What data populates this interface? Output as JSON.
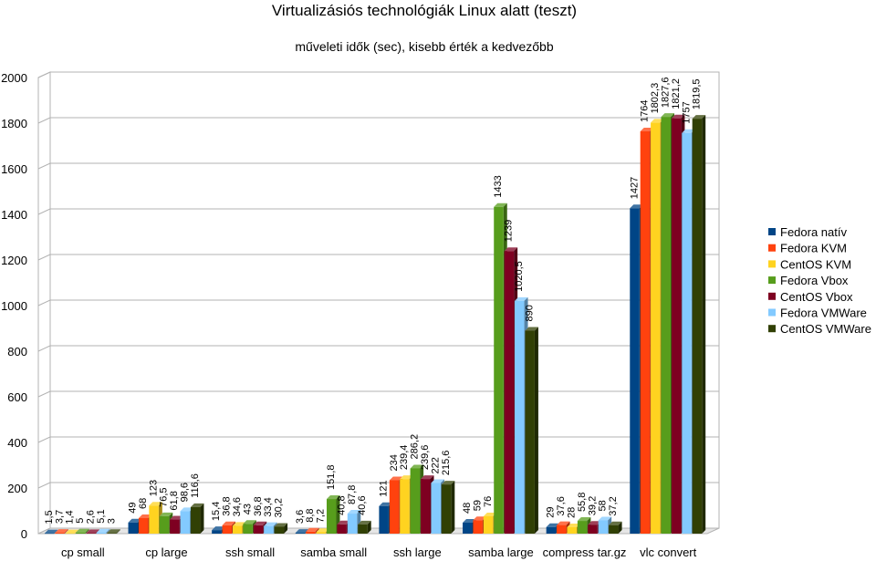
{
  "chart_data": {
    "type": "bar",
    "title": "Virtualizásiós technológiák Linux alatt (teszt)",
    "subtitle": "műveleti idők (sec), kisebb érték a kedvezőbb",
    "xlabel": "",
    "ylabel": "",
    "ylim": [
      0,
      2000
    ],
    "yticks": [
      "0",
      "200",
      "400",
      "600",
      "800",
      "1000",
      "1200",
      "1400",
      "1600",
      "1800",
      "2000"
    ],
    "grid": true,
    "legend_position": "right",
    "categories": [
      "cp small",
      "cp large",
      "ssh small",
      "samba small",
      "ssh large",
      "samba large",
      "compress tar.gz",
      "vlc convert"
    ],
    "series": [
      {
        "name": "Fedora natív",
        "color": "#004586",
        "values": [
          1.5,
          49,
          15.4,
          3.6,
          121,
          48,
          29,
          1427
        ],
        "labels": [
          "1,5",
          "49",
          "15,4",
          "3,6",
          "121",
          "48",
          "29",
          "1427"
        ]
      },
      {
        "name": "Fedora KVM",
        "color": "#ff420e",
        "values": [
          3.7,
          68,
          36.8,
          8.8,
          234,
          59,
          37.6,
          1764
        ],
        "labels": [
          "3,7",
          "68",
          "36,8",
          "8,8",
          "234",
          "59",
          "37,6",
          "1764"
        ]
      },
      {
        "name": "CentOS KVM",
        "color": "#ffd320",
        "values": [
          1.4,
          123,
          34.6,
          7.2,
          239.4,
          76,
          28,
          1802.3
        ],
        "labels": [
          "1,4",
          "123",
          "34,6",
          "7,2",
          "239,4",
          "76",
          "28",
          "1802,3"
        ]
      },
      {
        "name": "Fedora Vbox",
        "color": "#579d1c",
        "values": [
          5,
          76.5,
          43,
          151.8,
          286.2,
          1433,
          55.8,
          1827.6
        ],
        "labels": [
          "5",
          "76,5",
          "43",
          "151,8",
          "286,2",
          "1433",
          "55,8",
          "1827,6"
        ]
      },
      {
        "name": "CentOS Vbox",
        "color": "#7e0021",
        "values": [
          2.6,
          61.8,
          36.8,
          40.8,
          239.6,
          1239,
          39.2,
          1821.2
        ],
        "labels": [
          "2,6",
          "61,8",
          "36,8",
          "40,8",
          "239,6",
          "1239",
          "39,2",
          "1821,2"
        ]
      },
      {
        "name": "Fedora VMWare",
        "color": "#83caff",
        "values": [
          5.1,
          98.6,
          33.4,
          87.8,
          222,
          1020.5,
          58,
          1757
        ],
        "labels": [
          "5,1",
          "98,6",
          "33,4",
          "87,8",
          "222",
          "1020,5",
          "58",
          "1757"
        ]
      },
      {
        "name": "CentOS VMWare",
        "color": "#314004",
        "values": [
          3,
          116.6,
          30.2,
          40.6,
          215.6,
          890,
          37.2,
          1819.5
        ],
        "labels": [
          "3",
          "116,6",
          "30,2",
          "40,6",
          "215,6",
          "890",
          "37,2",
          "1819,5"
        ]
      }
    ]
  }
}
